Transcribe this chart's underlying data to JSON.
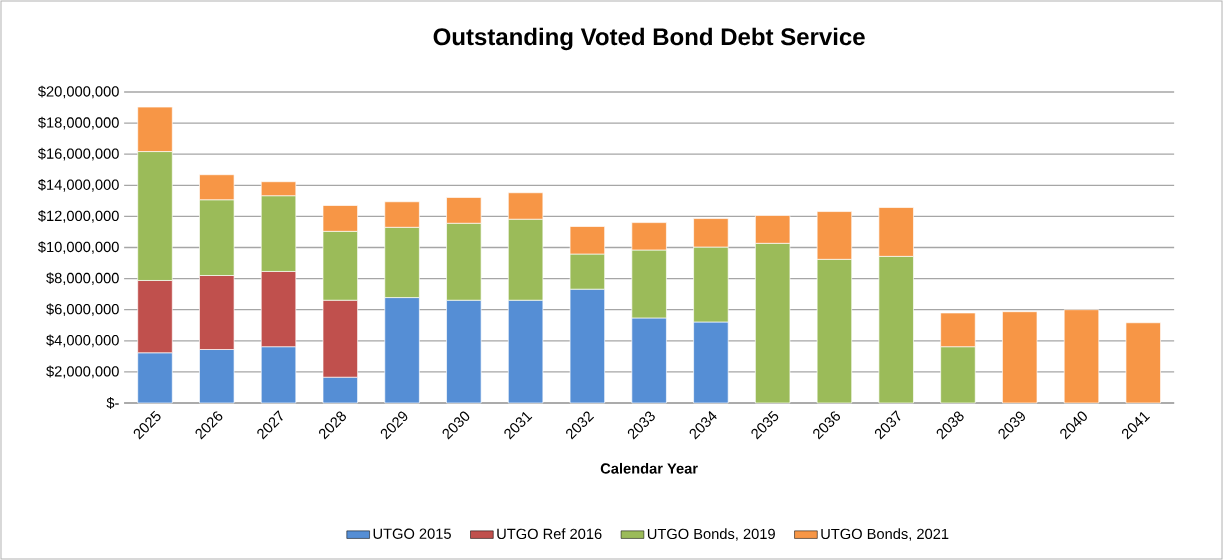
{
  "chart_data": {
    "type": "bar",
    "stacked": true,
    "title": "Outstanding Voted Bond Debt Service",
    "xlabel": "Calendar Year",
    "categories": [
      "2025",
      "2026",
      "2027",
      "2028",
      "2029",
      "2030",
      "2031",
      "2032",
      "2033",
      "2034",
      "2035",
      "2036",
      "2037",
      "2038",
      "2039",
      "2040",
      "2041"
    ],
    "series": [
      {
        "name": "UTGO 2015",
        "color": "#558ed5",
        "values": [
          3230000,
          3440000,
          3620000,
          1660000,
          6780000,
          6610000,
          6610000,
          7320000,
          5470000,
          5210000,
          null,
          null,
          null,
          null,
          null,
          null,
          null
        ]
      },
      {
        "name": "UTGO Ref 2016",
        "color": "#c0504d",
        "values": [
          4650000,
          4760000,
          4840000,
          4950000,
          null,
          null,
          null,
          null,
          null,
          null,
          null,
          null,
          null,
          null,
          null,
          null,
          null
        ]
      },
      {
        "name": "UTGO Bonds, 2019",
        "color": "#9bbb59",
        "values": [
          8290000,
          4870000,
          4870000,
          4430000,
          4520000,
          4950000,
          5210000,
          2260000,
          4370000,
          4820000,
          10270000,
          9240000,
          9430000,
          3620000,
          null,
          null,
          null
        ]
      },
      {
        "name": "UTGO Bonds, 2021",
        "color": "#f79646",
        "values": [
          2860000,
          1610000,
          900000,
          1660000,
          1640000,
          1660000,
          1700000,
          1770000,
          1760000,
          1830000,
          1790000,
          3070000,
          3140000,
          2170000,
          5870000,
          6000000,
          5160000
        ]
      }
    ],
    "ylim": [
      0,
      20000000
    ],
    "yticks": [
      {
        "value": 0,
        "label": "$-"
      },
      {
        "value": 2000000,
        "label": "$2,000,000"
      },
      {
        "value": 4000000,
        "label": "$4,000,000"
      },
      {
        "value": 6000000,
        "label": "$6,000,000"
      },
      {
        "value": 8000000,
        "label": "$8,000,000"
      },
      {
        "value": 10000000,
        "label": "$10,000,000"
      },
      {
        "value": 12000000,
        "label": "$12,000,000"
      },
      {
        "value": 14000000,
        "label": "$14,000,000"
      },
      {
        "value": 16000000,
        "label": "$16,000,000"
      },
      {
        "value": 18000000,
        "label": "$18,000,000"
      },
      {
        "value": 20000000,
        "label": "$20,000,000"
      }
    ],
    "grid": "y",
    "legend": "bottom"
  }
}
